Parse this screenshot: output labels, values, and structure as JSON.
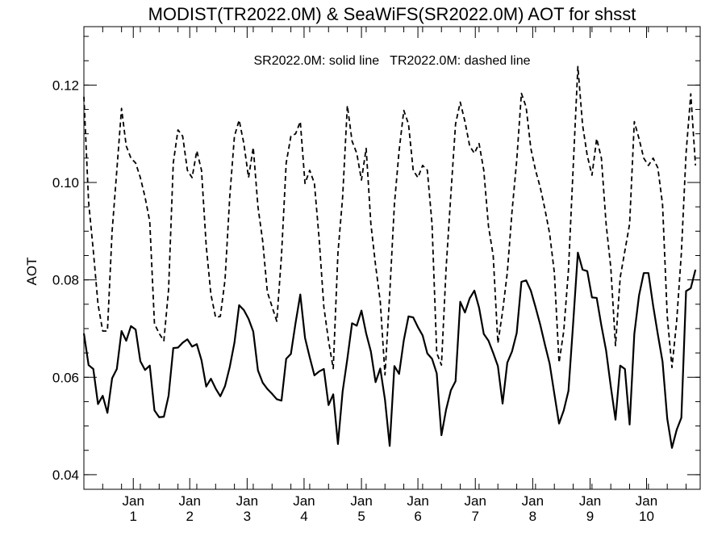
{
  "chart_data": {
    "type": "line",
    "title": "MODIST(TR2022.0M) & SeaWiFS(SR2022.0M)  AOT for shsst",
    "subtitle": "SR2022.0M: solid line   TR2022.0M: dashed line",
    "xlabel": "",
    "ylabel": "AOT",
    "ylim": [
      0.037,
      0.132
    ],
    "xlim": [
      0,
      131
    ],
    "yticks": [
      0.04,
      0.06,
      0.08,
      0.1,
      0.12
    ],
    "ytick_labels": [
      "0.04",
      "0.06",
      "0.08",
      "0.10",
      "0.12"
    ],
    "yminor_step": 0.005,
    "xminor_step": 4,
    "xticks": [
      {
        "x": 10.5,
        "line1": "Jan",
        "line2": "1"
      },
      {
        "x": 22.5,
        "line1": "Jan",
        "line2": "2"
      },
      {
        "x": 34.7,
        "line1": "Jan",
        "line2": "3"
      },
      {
        "x": 46.8,
        "line1": "Jan",
        "line2": "4"
      },
      {
        "x": 59.0,
        "line1": "Jan",
        "line2": "5"
      },
      {
        "x": 71.0,
        "line1": "Jan",
        "line2": "6"
      },
      {
        "x": 83.2,
        "line1": "Jan",
        "line2": "7"
      },
      {
        "x": 95.4,
        "line1": "Jan",
        "line2": "8"
      },
      {
        "x": 107.6,
        "line1": "Jan",
        "line2": "9"
      },
      {
        "x": 119.6,
        "line1": "Jan",
        "line2": "10"
      }
    ],
    "grid": false,
    "legend": "text-top-center",
    "series": [
      {
        "name": "SR2022.0M",
        "style": "solid",
        "x": [
          0,
          1,
          2,
          3,
          4,
          5,
          6,
          7,
          8,
          9,
          10,
          11,
          12,
          13,
          14,
          15,
          16,
          17,
          18,
          19,
          20,
          21,
          22,
          23,
          24,
          25,
          26,
          27,
          28,
          29,
          30,
          31,
          32,
          33,
          34,
          35,
          36,
          37,
          38,
          39,
          40,
          41,
          42,
          43,
          44,
          45,
          46,
          47,
          48,
          49,
          50,
          51,
          52,
          53,
          54,
          55,
          56,
          57,
          58,
          59,
          60,
          61,
          62,
          63,
          64,
          65,
          66,
          67,
          68,
          69,
          70,
          71,
          72,
          73,
          74,
          75,
          76,
          77,
          78,
          79,
          80,
          81,
          82,
          83,
          84,
          85,
          86,
          87,
          88,
          89,
          90,
          91,
          92,
          93,
          94,
          95,
          96,
          97,
          98,
          99,
          100,
          101,
          102,
          103,
          104,
          105,
          106,
          107,
          108,
          109,
          110,
          111,
          112,
          113,
          114,
          115,
          116,
          117,
          118,
          119,
          120,
          121,
          122,
          123,
          124,
          125,
          126,
          127,
          128,
          129,
          130
        ],
        "values": [
          0.069,
          0.0625,
          0.0617,
          0.0545,
          0.0562,
          0.0527,
          0.0598,
          0.0617,
          0.0695,
          0.0675,
          0.0705,
          0.0698,
          0.0633,
          0.0615,
          0.0624,
          0.0532,
          0.0518,
          0.0519,
          0.0562,
          0.066,
          0.0661,
          0.0671,
          0.0678,
          0.0663,
          0.0668,
          0.0635,
          0.0581,
          0.0597,
          0.0577,
          0.0561,
          0.0582,
          0.0621,
          0.0671,
          0.0748,
          0.0738,
          0.072,
          0.0694,
          0.0614,
          0.0589,
          0.0576,
          0.0566,
          0.0555,
          0.0552,
          0.0638,
          0.0648,
          0.0712,
          0.077,
          0.0681,
          0.0641,
          0.0604,
          0.0612,
          0.0617,
          0.0543,
          0.0565,
          0.0463,
          0.0571,
          0.0638,
          0.0711,
          0.0706,
          0.0737,
          0.069,
          0.0653,
          0.059,
          0.0618,
          0.0554,
          0.0459,
          0.0623,
          0.0607,
          0.0676,
          0.0725,
          0.0723,
          0.0703,
          0.0686,
          0.0649,
          0.0638,
          0.0608,
          0.0481,
          0.0534,
          0.0573,
          0.0592,
          0.0755,
          0.0733,
          0.0762,
          0.0778,
          0.0743,
          0.0689,
          0.0675,
          0.065,
          0.0623,
          0.0546,
          0.063,
          0.0653,
          0.0691,
          0.0796,
          0.0799,
          0.0778,
          0.0744,
          0.0708,
          0.0667,
          0.0628,
          0.0566,
          0.0505,
          0.0532,
          0.0572,
          0.0711,
          0.0856,
          0.0821,
          0.0818,
          0.0764,
          0.0763,
          0.0706,
          0.0655,
          0.0581,
          0.0513,
          0.0624,
          0.0617,
          0.0503,
          0.0689,
          0.0768,
          0.0814,
          0.0814,
          0.0747,
          0.0688,
          0.0632,
          0.0515,
          0.0455,
          0.0492,
          0.0517,
          0.0777,
          0.0783,
          0.0821
        ]
      },
      {
        "name": "TR2022.0M",
        "style": "dashed",
        "x": [
          0,
          1,
          2,
          3,
          4,
          5,
          6,
          7,
          8,
          9,
          10,
          11,
          12,
          13,
          14,
          15,
          16,
          17,
          18,
          19,
          20,
          21,
          22,
          23,
          24,
          25,
          26,
          27,
          28,
          29,
          30,
          31,
          32,
          33,
          34,
          35,
          36,
          37,
          38,
          39,
          40,
          41,
          42,
          43,
          44,
          45,
          46,
          47,
          48,
          49,
          50,
          51,
          52,
          53,
          54,
          55,
          56,
          57,
          58,
          59,
          60,
          61,
          62,
          63,
          64,
          65,
          66,
          67,
          68,
          69,
          70,
          71,
          72,
          73,
          74,
          75,
          76,
          77,
          78,
          79,
          80,
          81,
          82,
          83,
          84,
          85,
          86,
          87,
          88,
          89,
          90,
          91,
          92,
          93,
          94,
          95,
          96,
          97,
          98,
          99,
          100,
          101,
          102,
          103,
          104,
          105,
          106,
          107,
          108,
          109,
          110,
          111,
          112,
          113,
          114,
          115,
          116,
          117,
          118,
          119,
          120,
          121,
          122,
          123,
          124,
          125,
          126,
          127,
          128,
          129,
          130
        ],
        "values": [
          0.1176,
          0.096,
          0.086,
          0.075,
          0.0695,
          0.0695,
          0.09,
          0.1025,
          0.1152,
          0.1075,
          0.105,
          0.104,
          0.101,
          0.097,
          0.092,
          0.071,
          0.069,
          0.0675,
          0.078,
          0.104,
          0.1108,
          0.1095,
          0.1025,
          0.101,
          0.1065,
          0.1025,
          0.087,
          0.077,
          0.0723,
          0.0725,
          0.08,
          0.097,
          0.1095,
          0.1128,
          0.108,
          0.101,
          0.1072,
          0.095,
          0.088,
          0.0775,
          0.0745,
          0.0715,
          0.085,
          0.104,
          0.1095,
          0.11,
          0.1125,
          0.0998,
          0.1025,
          0.0998,
          0.0885,
          0.0745,
          0.0675,
          0.0618,
          0.0855,
          0.097,
          0.1158,
          0.1085,
          0.106,
          0.1005,
          0.107,
          0.0915,
          0.083,
          0.0755,
          0.0605,
          0.077,
          0.0955,
          0.1065,
          0.1148,
          0.112,
          0.1025,
          0.101,
          0.1035,
          0.1025,
          0.0915,
          0.065,
          0.0625,
          0.0825,
          0.0975,
          0.112,
          0.1165,
          0.1125,
          0.1075,
          0.106,
          0.108,
          0.1025,
          0.091,
          0.085,
          0.067,
          0.0735,
          0.0815,
          0.094,
          0.1045,
          0.1183,
          0.1155,
          0.107,
          0.1025,
          0.099,
          0.0945,
          0.0895,
          0.0815,
          0.063,
          0.0695,
          0.082,
          0.103,
          0.1238,
          0.1118,
          0.1055,
          0.1015,
          0.109,
          0.105,
          0.0915,
          0.0825,
          0.0665,
          0.0805,
          0.086,
          0.0915,
          0.1125,
          0.109,
          0.105,
          0.1035,
          0.105,
          0.103,
          0.0955,
          0.0725,
          0.062,
          0.0715,
          0.0855,
          0.106,
          0.1182,
          0.1035
        ]
      }
    ]
  }
}
